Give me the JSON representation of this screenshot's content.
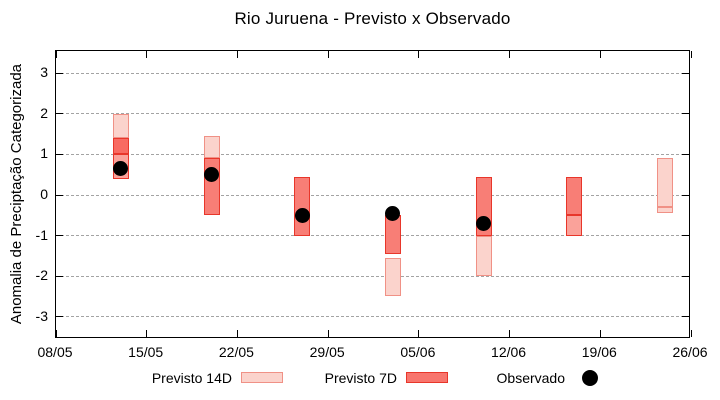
{
  "legend": {
    "items": [
      {
        "label": "Previsto 14D",
        "key": "light-box"
      },
      {
        "label": "Previsto 7D",
        "key": "dark-box"
      },
      {
        "label": "Observado",
        "key": "black-dot"
      }
    ]
  },
  "colors": {
    "grid": "#a3a3a3",
    "axis": "#000000",
    "observed_dot": "#000000",
    "legend_key_7d_fill": "#f8756d",
    "styles": {
      "light": {
        "fill": "#fbd3cc",
        "border": "#f09186"
      },
      "medium": {
        "fill": "#faa29a",
        "border": "#e8362a"
      },
      "dark": {
        "fill": "#f87e76",
        "border": "#e8362a"
      },
      "darker": {
        "fill": "#f86b62",
        "border": "#e8362a"
      }
    }
  },
  "chart_data": {
    "type": "candlestick",
    "title": "Rio Juruena - Previsto x Observado",
    "xlabel": "",
    "ylabel": "Anomalia de Preciptação Categorizada",
    "ylim": [
      -3.55,
      3.55
    ],
    "yticks": [
      3,
      2,
      1,
      0,
      -1,
      -2,
      -3
    ],
    "grid": "dashed-horizontal",
    "legend_position": "bottom-center",
    "xticks": [
      {
        "label": "08/05",
        "day": 0
      },
      {
        "label": "15/05",
        "day": 7
      },
      {
        "label": "22/05",
        "day": 14
      },
      {
        "label": "29/05",
        "day": 21
      },
      {
        "label": "05/06",
        "day": 28
      },
      {
        "label": "12/06",
        "day": 35
      },
      {
        "label": "19/06",
        "day": 42
      },
      {
        "label": "26/06",
        "day": 49
      }
    ],
    "x_total_days": 49,
    "series_legend": [
      "Previsto 14D",
      "Previsto 7D",
      "Observado"
    ],
    "clusters": [
      {
        "date": "13/05",
        "day": 5,
        "segments": [
          {
            "from": 2.0,
            "to": 1.4,
            "style": "light"
          },
          {
            "from": 1.4,
            "to": 1.0,
            "style": "darker"
          },
          {
            "from": 1.0,
            "to": 0.4,
            "style": "medium"
          }
        ],
        "observed": 0.65
      },
      {
        "date": "20/05",
        "day": 12,
        "segments": [
          {
            "from": 1.45,
            "to": 0.9,
            "style": "light"
          },
          {
            "from": 0.9,
            "to": -0.5,
            "style": "dark"
          }
        ],
        "observed": 0.5
      },
      {
        "date": "27/05",
        "day": 19,
        "segments": [
          {
            "from": 0.45,
            "to": -1.0,
            "style": "dark"
          }
        ],
        "observed": -0.5
      },
      {
        "date": "03/06",
        "day": 26,
        "segments": [
          {
            "from": -0.5,
            "to": -1.45,
            "style": "dark"
          },
          {
            "from": -1.55,
            "to": -2.5,
            "style": "light"
          }
        ],
        "observed": -0.45
      },
      {
        "date": "10/06",
        "day": 33,
        "segments": [
          {
            "from": 0.45,
            "to": -1.0,
            "style": "dark"
          },
          {
            "from": -1.0,
            "to": -2.0,
            "style": "light"
          }
        ],
        "observed": -0.7
      },
      {
        "date": "17/06",
        "day": 40,
        "segments": [
          {
            "from": 0.45,
            "to": -0.5,
            "style": "dark"
          },
          {
            "from": -0.5,
            "to": -1.0,
            "style": "medium"
          }
        ],
        "observed": null
      },
      {
        "date": "24/06",
        "day": 47,
        "segments": [
          {
            "from": 0.9,
            "to": -0.3,
            "style": "light"
          },
          {
            "from": -0.3,
            "to": -0.45,
            "style": "light"
          }
        ],
        "observed": null
      }
    ]
  }
}
